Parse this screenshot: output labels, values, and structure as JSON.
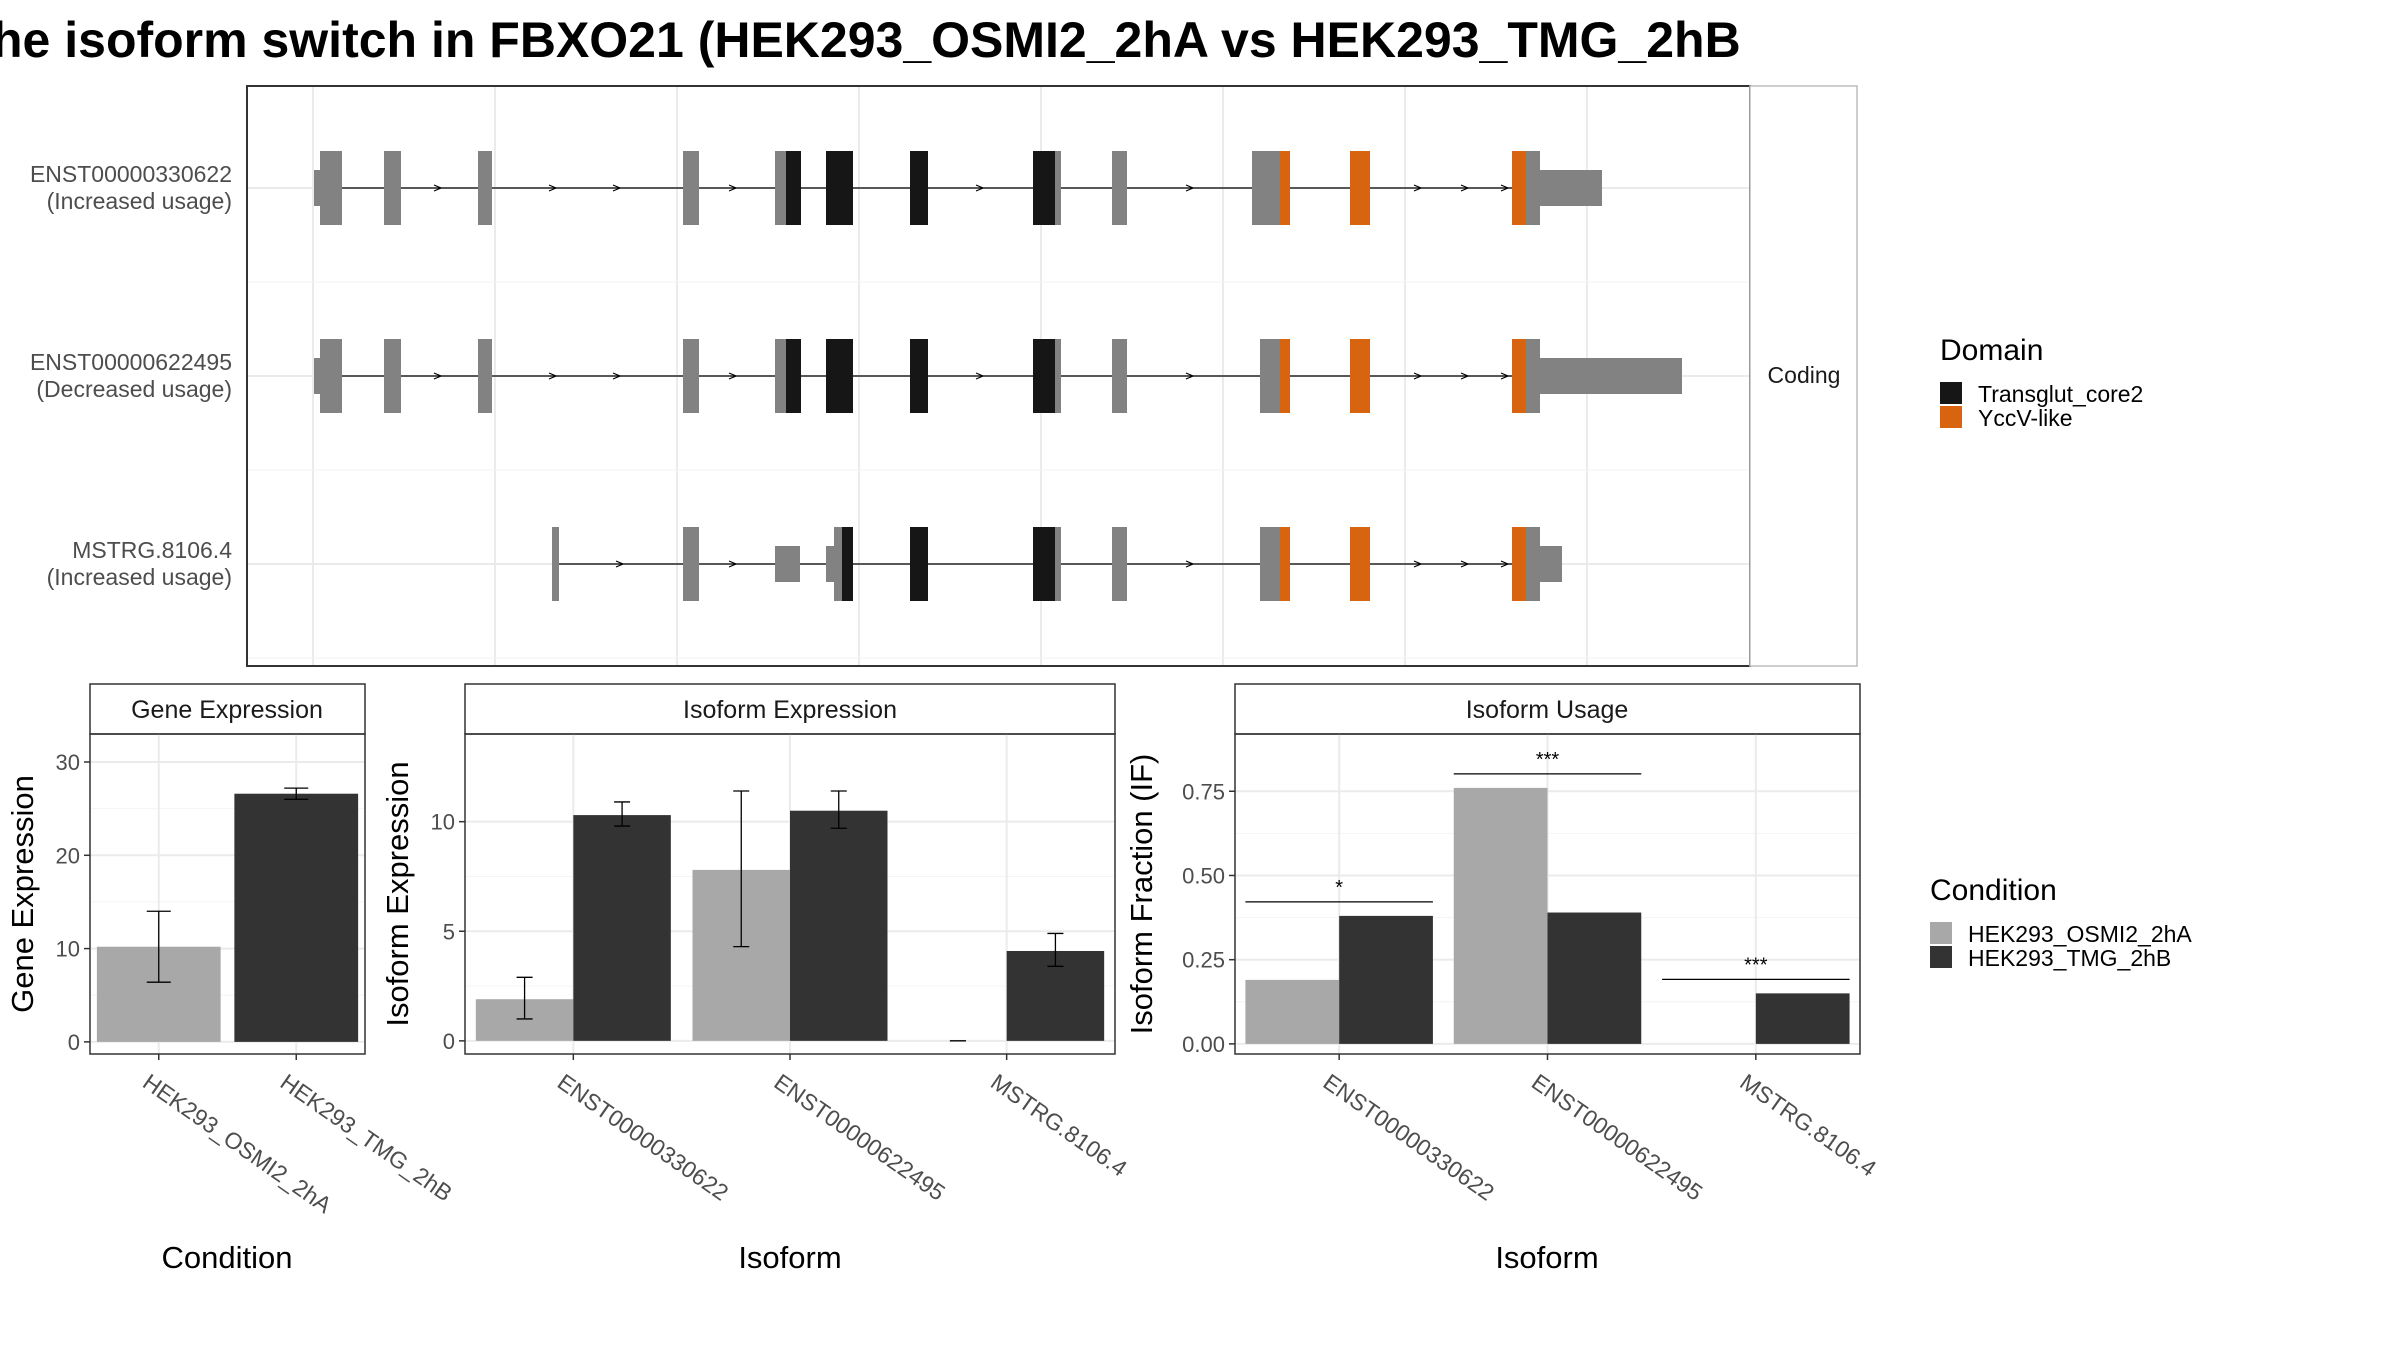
{
  "title": "he isoform switch in FBXO21 (HEK293_OSMI2_2hA vs HEK293_TMG_2hB",
  "colors": {
    "utr": "#828282",
    "transglut": "#161616",
    "yccv": "#d8640f",
    "cond_a": "#a8a8a8",
    "cond_b": "#333333",
    "grid": "#ebebeb",
    "strip_bg": "#ffffff",
    "panel_border": "#333333"
  },
  "structure": {
    "strip_label": "Coding",
    "transcripts": [
      {
        "id": "ENST00000330622",
        "usage": "(Increased usage)"
      },
      {
        "id": "ENST00000622495",
        "usage": "(Decreased usage)"
      },
      {
        "id": "MSTRG.8106.4",
        "usage": "(Increased usage)"
      }
    ],
    "legend_title": "Domain",
    "legend_items": [
      {
        "label": "Transglut_core2",
        "color": "#161616"
      },
      {
        "label": "YccV-like",
        "color": "#d8640f"
      }
    ]
  },
  "condition_legend": {
    "title": "Condition",
    "items": [
      {
        "label": "HEK293_OSMI2_2hA",
        "color": "#a8a8a8"
      },
      {
        "label": "HEK293_TMG_2hB",
        "color": "#333333"
      }
    ]
  },
  "chart_data": [
    {
      "type": "bar",
      "title": "Gene Expression",
      "xlabel": "Condition",
      "ylabel": "Gene Expression",
      "categories": [
        "HEK293_OSMI2_2hA",
        "HEK293_TMG_2hB"
      ],
      "values": [
        10.2,
        26.6
      ],
      "error_low": [
        6.4,
        26.0
      ],
      "error_high": [
        14.0,
        27.2
      ],
      "ylim": [
        -1.3,
        33
      ],
      "yticks": [
        0,
        10,
        20,
        30
      ]
    },
    {
      "type": "bar",
      "title": "Isoform Expression",
      "xlabel": "Isoform",
      "ylabel": "Isoform Expression",
      "categories": [
        "ENST00000330622",
        "ENST00000622495",
        "MSTRG.8106.4"
      ],
      "series": [
        {
          "name": "HEK293_OSMI2_2hA",
          "values": [
            1.9,
            7.8,
            0.0
          ],
          "error_low": [
            1.0,
            4.3,
            0.0
          ],
          "error_high": [
            2.9,
            11.4,
            0.0
          ]
        },
        {
          "name": "HEK293_TMG_2hB",
          "values": [
            10.3,
            10.5,
            4.1
          ],
          "error_low": [
            9.8,
            9.7,
            3.4
          ],
          "error_high": [
            10.9,
            11.4,
            4.9
          ]
        }
      ],
      "ylim": [
        -0.6,
        14
      ],
      "yticks": [
        0,
        5,
        10
      ]
    },
    {
      "type": "bar",
      "title": "Isoform Usage",
      "xlabel": "Isoform",
      "ylabel": "Isoform Fraction (IF)",
      "categories": [
        "ENST00000330622",
        "ENST00000622495",
        "MSTRG.8106.4"
      ],
      "series": [
        {
          "name": "HEK293_OSMI2_2hA",
          "values": [
            0.19,
            0.76,
            0.0
          ]
        },
        {
          "name": "HEK293_TMG_2hB",
          "values": [
            0.38,
            0.39,
            0.15
          ]
        }
      ],
      "significance": [
        "*",
        "***",
        "***"
      ],
      "ylim": [
        -0.03,
        0.92
      ],
      "yticks": [
        0,
        0.25,
        0.5,
        0.75
      ],
      "ytick_labels": [
        "0.00",
        "0.25",
        "0.50",
        "0.75"
      ]
    }
  ]
}
